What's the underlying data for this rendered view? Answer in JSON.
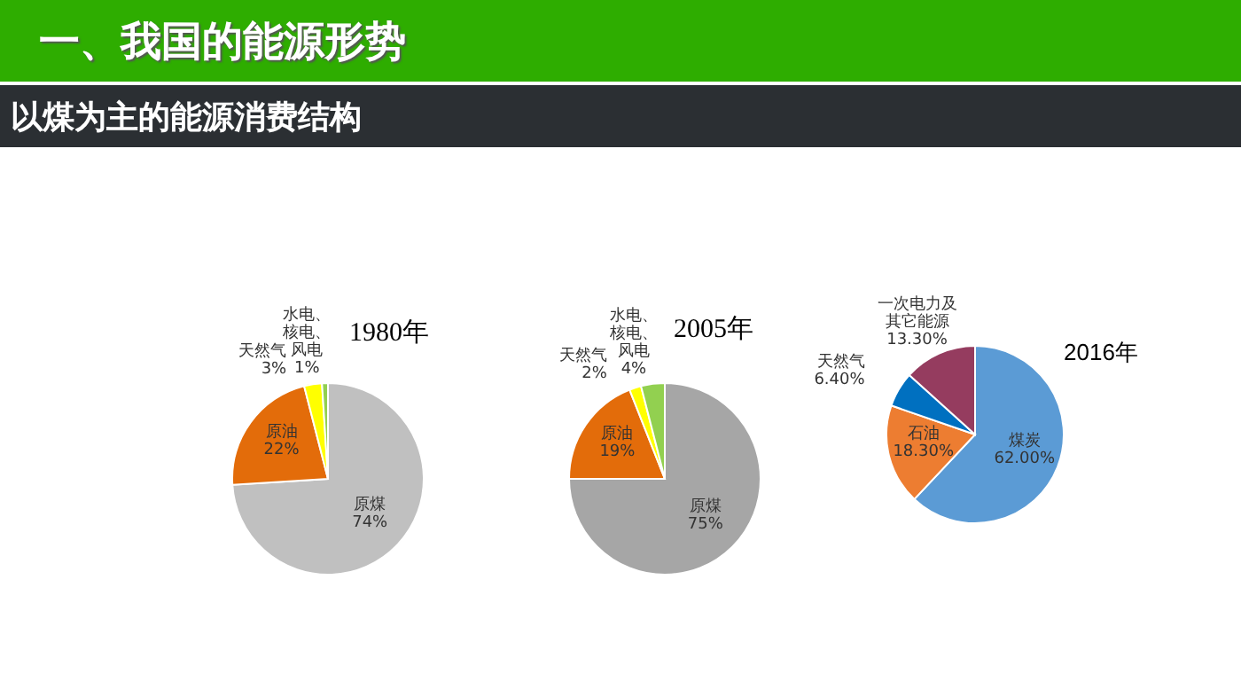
{
  "chart_data": [
    {
      "type": "pie",
      "title": "1980年",
      "subtitle": "以煤为主的能源消费结构",
      "annotations": [
        "一、我国的能源形势"
      ],
      "categories": [
        "原煤",
        "原油",
        "天然气",
        "水电、核电、风电"
      ],
      "values": [
        74,
        22,
        3,
        1
      ],
      "value_labels": [
        "74%",
        "22%",
        "3%",
        "1%"
      ],
      "colors": [
        "#c0c0c0",
        "#e36c0a",
        "#ffff00",
        "#92d050"
      ],
      "legend": false
    },
    {
      "type": "pie",
      "title": "2005年",
      "categories": [
        "原煤",
        "原油",
        "天然气",
        "水电、核电、风电"
      ],
      "values": [
        75,
        19,
        2,
        4
      ],
      "value_labels": [
        "75%",
        "19%",
        "2%",
        "4%"
      ],
      "colors": [
        "#a6a6a6",
        "#e36c0a",
        "#ffff00",
        "#92d050"
      ],
      "legend": false
    },
    {
      "type": "pie",
      "title": "2016年",
      "categories": [
        "煤炭",
        "石油",
        "天然气",
        "一次电力及其它能源"
      ],
      "values": [
        62.0,
        18.3,
        6.4,
        13.3
      ],
      "value_labels": [
        "62.00%",
        "18.30%",
        "6.40%",
        "13.30%"
      ],
      "colors": [
        "#5b9bd5",
        "#ed7d31",
        "#0070c0",
        "#953c5f"
      ],
      "legend": false
    }
  ]
}
